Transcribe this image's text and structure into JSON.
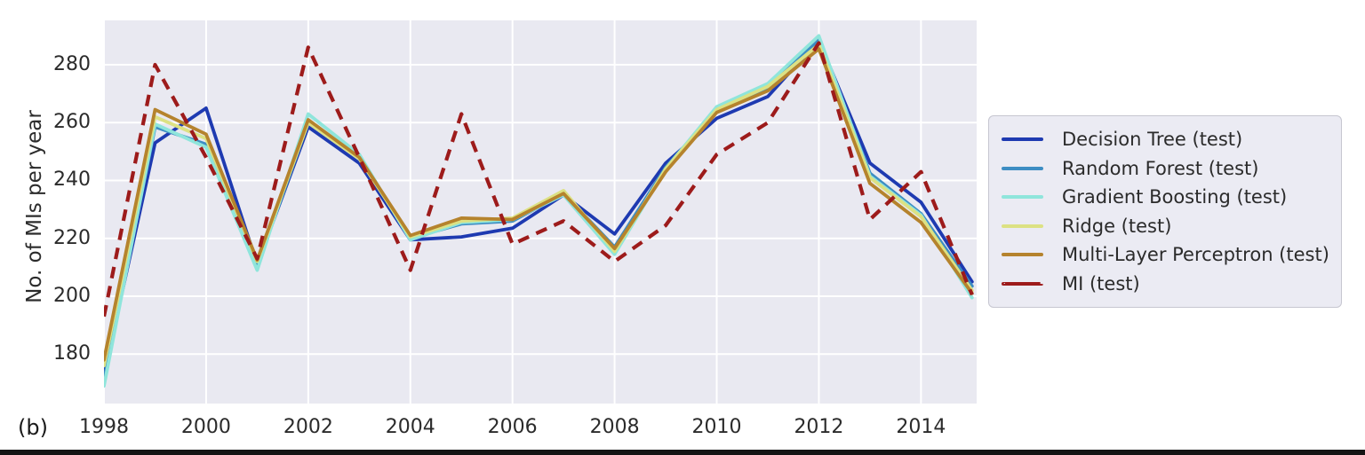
{
  "figure_label": "(b)",
  "colors": {
    "plot_background": "#e9e9f1",
    "grid": "#ffffff",
    "text": "#2b2b2b",
    "legend_background": "#ebebf3",
    "legend_border": "#c6c6d0",
    "bottom_bar": "#141414"
  },
  "chart_data": {
    "type": "line",
    "title": "",
    "xlabel": "",
    "ylabel": "No. of MIs per year",
    "grid": true,
    "legend_position": "right",
    "xlim": [
      1998,
      2015.09
    ],
    "ylim": [
      162.9,
      295.33
    ],
    "xticks": [
      1998,
      2000,
      2002,
      2004,
      2006,
      2008,
      2010,
      2012,
      2014
    ],
    "yticks": [
      180,
      200,
      220,
      240,
      260,
      280
    ],
    "x": [
      1998,
      1999,
      2000,
      2001,
      2002,
      2003,
      2004,
      2005,
      2006,
      2007,
      2008,
      2009,
      2010,
      2011,
      2012,
      2013,
      2014,
      2015
    ],
    "series": [
      {
        "name": "Decision Tree (test)",
        "color": "#1e3ab1",
        "dash": false,
        "values": [
          173,
          253,
          265,
          211,
          258.5,
          246,
          219.5,
          220.5,
          223.5,
          235,
          221.5,
          246,
          261.5,
          269,
          288.5,
          246,
          232.5,
          205
        ]
      },
      {
        "name": "Random Forest (test)",
        "color": "#3d8dc3",
        "dash": false,
        "values": [
          171,
          258.5,
          252.5,
          210.5,
          260,
          248,
          220,
          225,
          226,
          235.5,
          217,
          244.5,
          264.5,
          272,
          288.5,
          242.5,
          228.5,
          203.5
        ]
      },
      {
        "name": "Gradient Boosting (test)",
        "color": "#8fe5db",
        "dash": false,
        "values": [
          169,
          259.5,
          251.5,
          209,
          263,
          249,
          219.5,
          225.5,
          226.5,
          235,
          214.5,
          244,
          265.5,
          273.5,
          290,
          241.5,
          228,
          199.5
        ]
      },
      {
        "name": "Ridge (test)",
        "color": "#dce183",
        "dash": false,
        "values": [
          176,
          262,
          254.5,
          212,
          260,
          247.5,
          220.5,
          226,
          227,
          236.5,
          215.5,
          244,
          264.5,
          272.5,
          287,
          241,
          227.5,
          202
        ]
      },
      {
        "name": "Multi-Layer Perceptron (test)",
        "color": "#b5832d",
        "dash": false,
        "values": [
          178,
          264.5,
          256,
          212.5,
          261,
          248,
          221,
          227,
          226.5,
          235.5,
          216.5,
          243,
          263.5,
          271,
          285.5,
          239,
          225.5,
          201
        ]
      },
      {
        "name": "MI (test)",
        "color": "#9d1b1b",
        "dash": true,
        "values": [
          193,
          280,
          248,
          213,
          286,
          248,
          209,
          263,
          218,
          226,
          212,
          224.5,
          249,
          260,
          287.5,
          226.5,
          243,
          200.5
        ]
      }
    ]
  }
}
